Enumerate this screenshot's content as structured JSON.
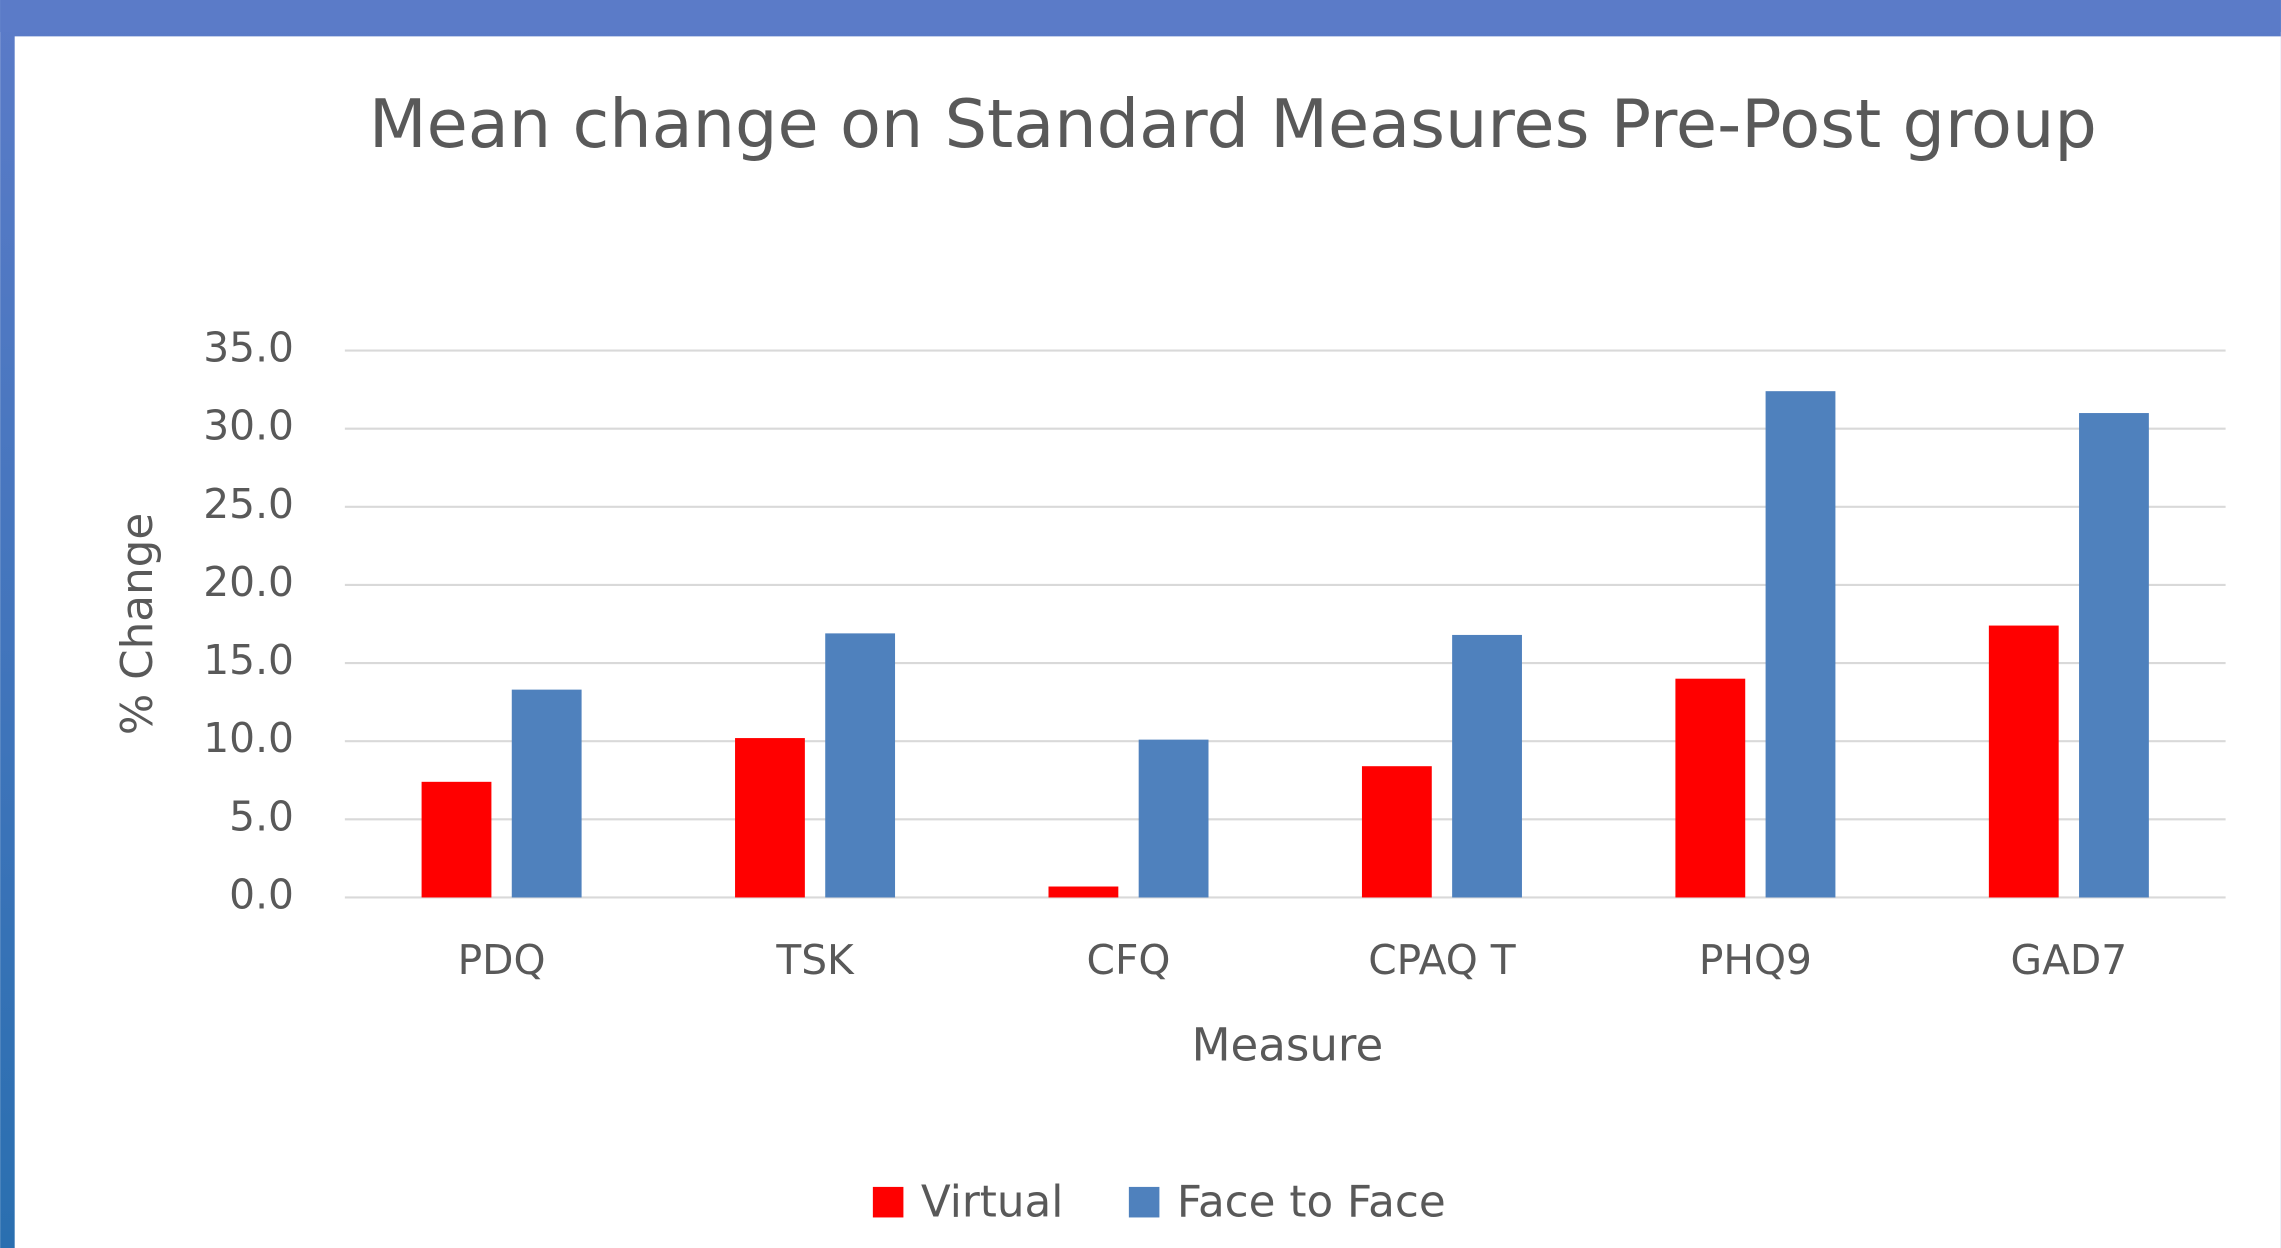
{
  "chart_data": {
    "type": "bar",
    "title": "Mean change on Standard Measures Pre-Post group",
    "x_label": "Measure",
    "y_label": "% Change",
    "categories": [
      "PDQ",
      "TSK",
      "CFQ",
      "CPAQ T",
      "PHQ9",
      "GAD7"
    ],
    "series": [
      {
        "name": "Virtual",
        "color": "#ff0000",
        "values": [
          7.4,
          10.2,
          0.7,
          8.4,
          14.0,
          17.4
        ]
      },
      {
        "name": "Face to Face",
        "color": "#4f81bd",
        "values": [
          13.3,
          16.9,
          10.1,
          16.8,
          32.4,
          31.0
        ]
      }
    ],
    "ylim": [
      0,
      35
    ],
    "yticks": [
      {
        "value": 0,
        "label": "0.0"
      },
      {
        "value": 5,
        "label": "5.0"
      },
      {
        "value": 10,
        "label": "10.0"
      },
      {
        "value": 15,
        "label": "15.0"
      },
      {
        "value": 20,
        "label": "20.0"
      },
      {
        "value": 25,
        "label": "25.0"
      },
      {
        "value": 30,
        "label": "30.0"
      },
      {
        "value": 35,
        "label": "35.0"
      }
    ],
    "grid": true,
    "legend": "bottom"
  }
}
